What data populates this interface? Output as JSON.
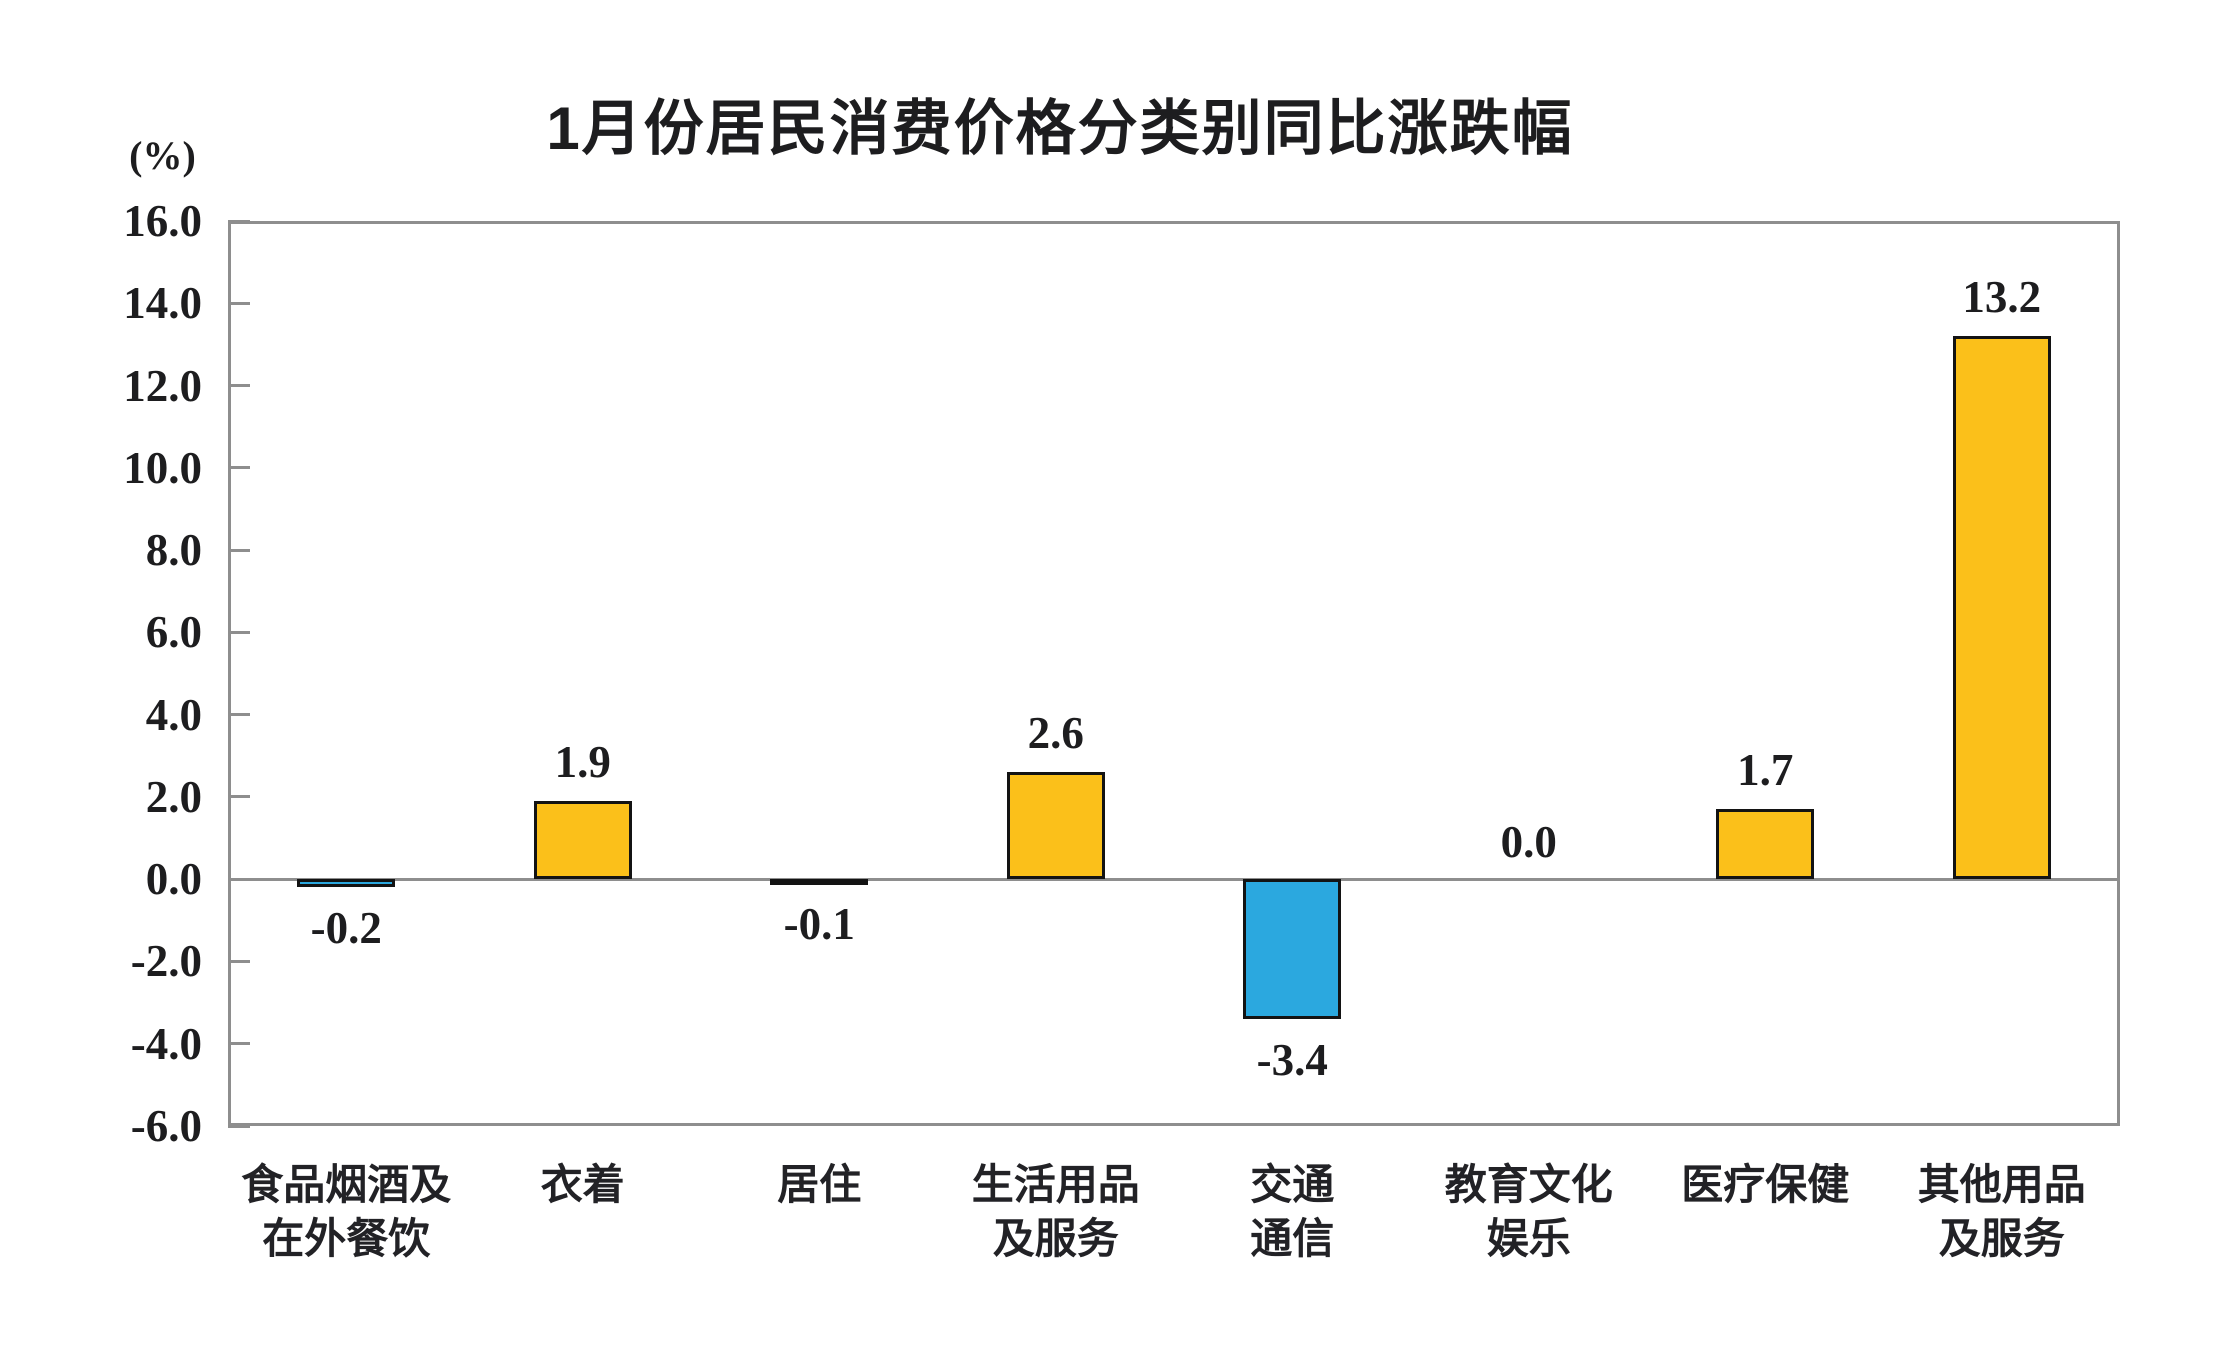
{
  "header": {
    "title": "1月份居民消费价格分类别同比涨跌幅",
    "unit_label": "(%)"
  },
  "chart_data": {
    "type": "bar",
    "title": "1月份居民消费价格分类别同比涨跌幅",
    "xlabel": "",
    "ylabel": "(%)",
    "categories": [
      "食品烟酒及\n在外餐饮",
      "衣着",
      "居住",
      "生活用品\n及服务",
      "交通\n通信",
      "教育文化\n娱乐",
      "医疗保健",
      "其他用品\n及服务"
    ],
    "values": [
      -0.2,
      1.9,
      -0.1,
      2.6,
      -3.4,
      0.0,
      1.7,
      13.2
    ],
    "value_labels": [
      "-0.2",
      "1.9",
      "-0.1",
      "2.6",
      "-3.4",
      "0.0",
      "1.7",
      "13.2"
    ],
    "ylim": [
      -6.0,
      16.0
    ],
    "ytick_step": 2.0,
    "ytick_labels": [
      "16.0",
      "14.0",
      "12.0",
      "10.0",
      "8.0",
      "6.0",
      "4.0",
      "2.0",
      "0.0",
      "-2.0",
      "-4.0",
      "-6.0"
    ],
    "grid": false,
    "legend_position": "none",
    "colors": {
      "positive_bar": "#fbc01a",
      "negative_bar": "#2ba8df",
      "bar_border": "#131313",
      "axis_frame": "#8e8e8e",
      "zero_line": "#8e8e8e",
      "text": "#1d1d1f"
    }
  }
}
